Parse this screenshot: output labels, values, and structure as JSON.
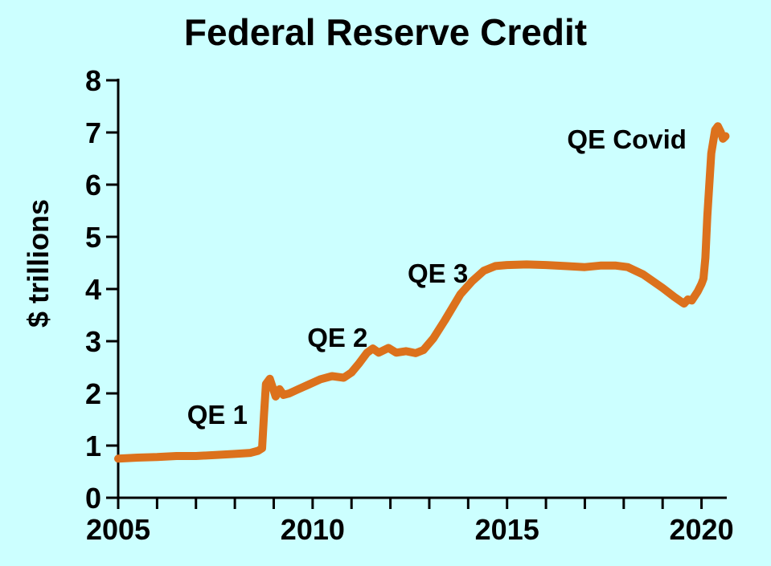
{
  "chart_data": {
    "type": "line",
    "title": "Federal Reserve Credit",
    "xlabel": "",
    "ylabel": "$ trillions",
    "xlim": [
      2005,
      2020.65
    ],
    "ylim": [
      0,
      8
    ],
    "grid": false,
    "legend": "none",
    "background_color": "#CCFFFF",
    "line_color": "#DC711C",
    "axis_color": "#000000",
    "text_color": "#000000",
    "x_ticks": [
      2005,
      2006,
      2007,
      2008,
      2009,
      2010,
      2011,
      2012,
      2013,
      2014,
      2015,
      2016,
      2017,
      2018,
      2019,
      2020
    ],
    "x_tick_labels": [
      {
        "year": 2005,
        "label": "2005"
      },
      {
        "year": 2010,
        "label": "2010"
      },
      {
        "year": 2015,
        "label": "2015"
      },
      {
        "year": 2020,
        "label": "2020"
      }
    ],
    "y_ticks": [
      0,
      1,
      2,
      3,
      4,
      5,
      6,
      7,
      8
    ],
    "y_tick_labels": [
      "0",
      "1",
      "2",
      "3",
      "4",
      "5",
      "6",
      "7",
      "8"
    ],
    "series": [
      {
        "name": "Federal Reserve Credit ($ trillions)",
        "points": [
          [
            2005.0,
            0.75
          ],
          [
            2005.5,
            0.77
          ],
          [
            2006.0,
            0.78
          ],
          [
            2006.5,
            0.8
          ],
          [
            2007.0,
            0.8
          ],
          [
            2007.5,
            0.82
          ],
          [
            2008.0,
            0.84
          ],
          [
            2008.4,
            0.86
          ],
          [
            2008.6,
            0.9
          ],
          [
            2008.7,
            0.95
          ],
          [
            2008.75,
            1.6
          ],
          [
            2008.8,
            2.18
          ],
          [
            2008.9,
            2.28
          ],
          [
            2009.05,
            1.94
          ],
          [
            2009.15,
            2.08
          ],
          [
            2009.25,
            1.97
          ],
          [
            2009.4,
            2.0
          ],
          [
            2009.6,
            2.07
          ],
          [
            2009.9,
            2.17
          ],
          [
            2010.2,
            2.27
          ],
          [
            2010.5,
            2.33
          ],
          [
            2010.8,
            2.3
          ],
          [
            2011.0,
            2.4
          ],
          [
            2011.2,
            2.58
          ],
          [
            2011.4,
            2.78
          ],
          [
            2011.55,
            2.86
          ],
          [
            2011.7,
            2.78
          ],
          [
            2011.95,
            2.87
          ],
          [
            2012.15,
            2.78
          ],
          [
            2012.4,
            2.81
          ],
          [
            2012.65,
            2.77
          ],
          [
            2012.85,
            2.83
          ],
          [
            2013.1,
            3.05
          ],
          [
            2013.4,
            3.4
          ],
          [
            2013.8,
            3.9
          ],
          [
            2014.1,
            4.15
          ],
          [
            2014.4,
            4.35
          ],
          [
            2014.7,
            4.44
          ],
          [
            2015.0,
            4.46
          ],
          [
            2015.5,
            4.47
          ],
          [
            2016.0,
            4.46
          ],
          [
            2016.5,
            4.44
          ],
          [
            2017.0,
            4.42
          ],
          [
            2017.4,
            4.45
          ],
          [
            2017.8,
            4.45
          ],
          [
            2018.1,
            4.42
          ],
          [
            2018.5,
            4.28
          ],
          [
            2019.0,
            4.02
          ],
          [
            2019.3,
            3.85
          ],
          [
            2019.55,
            3.72
          ],
          [
            2019.65,
            3.8
          ],
          [
            2019.75,
            3.78
          ],
          [
            2019.9,
            3.95
          ],
          [
            2020.0,
            4.1
          ],
          [
            2020.05,
            4.2
          ],
          [
            2020.1,
            4.6
          ],
          [
            2020.15,
            5.4
          ],
          [
            2020.25,
            6.6
          ],
          [
            2020.35,
            7.05
          ],
          [
            2020.42,
            7.12
          ],
          [
            2020.5,
            7.0
          ],
          [
            2020.55,
            6.88
          ],
          [
            2020.62,
            6.93
          ]
        ]
      }
    ],
    "annotations": [
      {
        "text": "QE 1",
        "x": 2007.55,
        "y": 1.6
      },
      {
        "text": "QE 2",
        "x": 2010.64,
        "y": 3.08
      },
      {
        "text": "QE 3",
        "x": 2013.22,
        "y": 4.31
      },
      {
        "text": "QE Covid",
        "x": 2018.08,
        "y": 6.88
      }
    ]
  }
}
